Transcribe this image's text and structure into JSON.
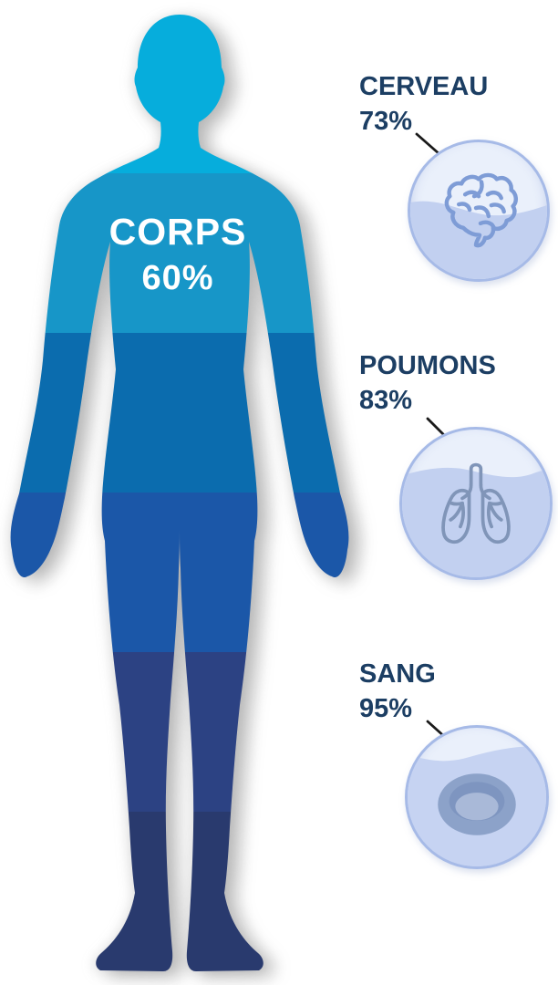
{
  "body_figure": {
    "label": "CORPS",
    "value": "60%"
  },
  "organs": [
    {
      "label": "CERVEAU",
      "value": "73%",
      "icon": "brain-icon"
    },
    {
      "label": "POUMONS",
      "value": "83%",
      "icon": "lungs-icon"
    },
    {
      "label": "SANG",
      "value": "95%",
      "icon": "blood-cell-icon"
    }
  ],
  "colors": {
    "body_bands": [
      "#06ADDC",
      "#1796C8",
      "#0B6CAE",
      "#1B57A8",
      "#2C4283",
      "#293A6E"
    ],
    "label_text": "#1C3E63",
    "body_label_text": "#FFFFFF",
    "circle_fill": "#EAF0FB",
    "circle_water": "#C2D0F0",
    "circle_border": "#A6BAE7",
    "connector_line": "#1A1A1A"
  }
}
